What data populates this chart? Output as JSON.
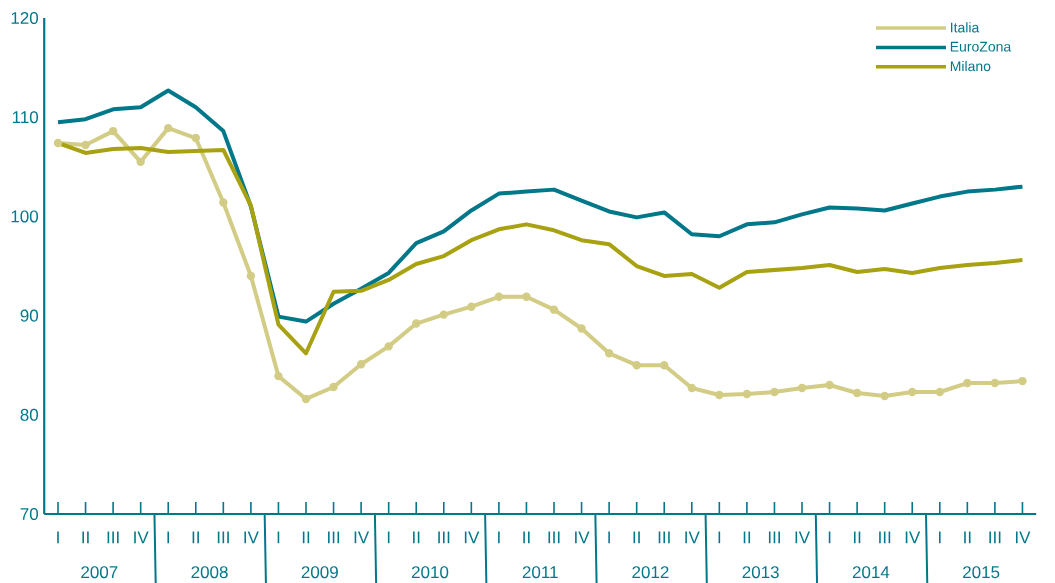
{
  "chart_data": {
    "type": "line",
    "categories": [
      "I",
      "II",
      "III",
      "IV",
      "I",
      "II",
      "III",
      "IV",
      "I",
      "II",
      "III",
      "IV",
      "I",
      "II",
      "III",
      "IV",
      "I",
      "II",
      "III",
      "IV",
      "I",
      "II",
      "III",
      "IV",
      "I",
      "II",
      "III",
      "IV",
      "I",
      "II",
      "III",
      "IV",
      "I",
      "II",
      "III",
      "IV"
    ],
    "series": [
      {
        "name": "Italia",
        "color": "#d2cc85",
        "marker": "circle",
        "values": [
          107.4,
          107.2,
          108.6,
          105.5,
          108.9,
          107.9,
          101.4,
          94.0,
          83.9,
          81.6,
          82.8,
          85.1,
          86.9,
          89.2,
          90.1,
          90.9,
          91.9,
          91.9,
          90.6,
          88.7,
          86.2,
          85.0,
          85.0,
          82.7,
          82.0,
          82.1,
          82.3,
          82.7,
          83.0,
          82.2,
          81.9,
          82.3,
          82.3,
          83.2,
          83.2,
          83.4
        ]
      },
      {
        "name": "EuroZona",
        "color": "#00788a",
        "values": [
          109.5,
          109.8,
          110.8,
          111.0,
          112.7,
          111.0,
          108.6,
          101.0,
          89.9,
          89.4,
          91.2,
          92.7,
          94.3,
          97.3,
          98.5,
          100.6,
          102.3,
          102.5,
          102.7,
          101.6,
          100.5,
          99.9,
          100.4,
          98.2,
          98.0,
          99.2,
          99.4,
          100.2,
          100.9,
          100.8,
          100.6,
          101.3,
          102.0,
          102.5,
          102.7,
          103.0
        ]
      },
      {
        "name": "Milano",
        "color": "#a8a213",
        "values": [
          107.4,
          106.4,
          106.8,
          106.9,
          106.5,
          106.6,
          106.7,
          101.1,
          89.1,
          86.2,
          92.4,
          92.5,
          93.6,
          95.2,
          96.0,
          97.6,
          98.7,
          99.2,
          98.6,
          97.6,
          97.2,
          95.0,
          94.0,
          94.2,
          92.8,
          94.4,
          94.6,
          94.8,
          95.1,
          94.4,
          94.7,
          94.3,
          94.8,
          95.1,
          95.3,
          95.6
        ]
      }
    ],
    "ylim": [
      70,
      120
    ],
    "yticks": [
      70,
      80,
      90,
      100,
      110,
      120
    ],
    "grid": false,
    "legend": "top right",
    "annotations": [
      "2007",
      "2008",
      "2009",
      "2010",
      "2011",
      "2012",
      "2013",
      "2014",
      "2015"
    ]
  }
}
